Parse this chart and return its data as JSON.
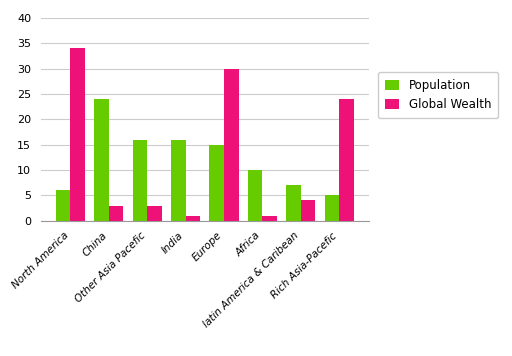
{
  "categories": [
    "North America",
    "China",
    "Other Asia Pacefic",
    "India",
    "Europe",
    "Africa",
    "latin America & Caribean",
    "Rich Asia-Pacefic"
  ],
  "population": [
    6,
    24,
    16,
    16,
    15,
    10,
    7,
    5
  ],
  "global_wealth": [
    34,
    3,
    3,
    1,
    30,
    1,
    4,
    24
  ],
  "population_color": "#66cc00",
  "global_wealth_color": "#ee1177",
  "legend_population": "Population",
  "legend_global_wealth": "Global Wealth",
  "ylim": [
    0,
    40
  ],
  "yticks": [
    0,
    5,
    10,
    15,
    20,
    25,
    30,
    35,
    40
  ],
  "background_color": "#ffffff",
  "bar_width": 0.38,
  "grid_color": "#cccccc",
  "tick_label_fontsize": 7.5,
  "legend_fontsize": 8.5,
  "ytick_fontsize": 8
}
